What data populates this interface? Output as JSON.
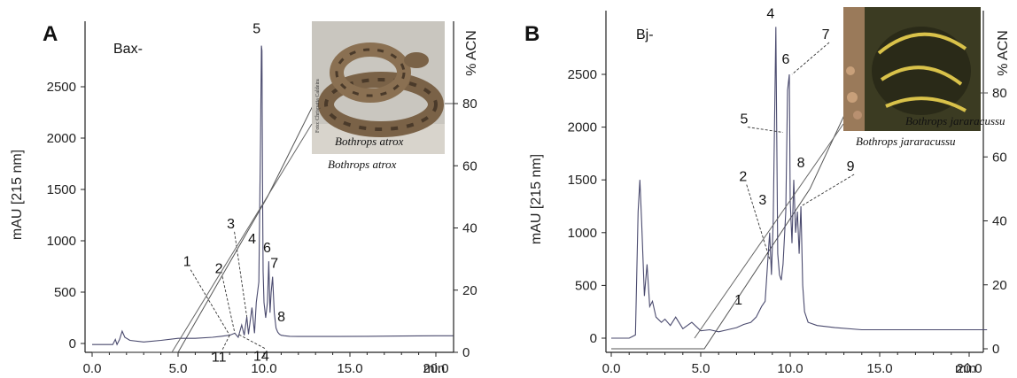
{
  "chart_data": [
    {
      "type": "line",
      "panel_label": "A",
      "species_label": "Bax-",
      "ylabel": "mAU [215 nm]",
      "y2label": "% ACN",
      "x_unit": "min",
      "xlim": [
        0,
        21
      ],
      "ylim": [
        -100,
        3000
      ],
      "y2lim": [
        0,
        100
      ],
      "x_ticks": [
        "0.0",
        "5.0",
        "10.0",
        "15.0",
        "20.0"
      ],
      "y_ticks": [
        "0",
        "500",
        "1000",
        "1500",
        "2000",
        "2500"
      ],
      "y2_ticks": [
        "0",
        "20",
        "40",
        "60",
        "80"
      ],
      "series": [
        {
          "x": [
            0.0,
            0.3,
            0.6,
            1.2,
            1.35,
            1.45,
            1.6,
            1.75,
            1.9,
            2.2,
            3,
            4,
            5,
            6,
            7,
            7.5,
            8,
            8.3,
            8.5,
            8.7,
            8.85,
            9.0,
            9.1,
            9.3,
            9.45,
            9.55,
            9.7,
            9.8,
            9.85,
            9.88,
            9.91,
            9.95,
            10.0,
            10.1,
            10.2,
            10.28,
            10.35,
            10.42,
            10.5,
            10.6,
            10.7,
            10.8,
            10.9,
            11.0,
            11.2,
            11.5,
            12,
            14,
            16,
            18,
            20,
            21
          ],
          "y": [
            -10,
            -10,
            -10,
            -10,
            40,
            -10,
            40,
            120,
            60,
            30,
            15,
            30,
            50,
            50,
            60,
            70,
            80,
            100,
            60,
            180,
            80,
            260,
            90,
            350,
            100,
            400,
            600,
            2000,
            2900,
            2850,
            1600,
            700,
            400,
            250,
            400,
            800,
            300,
            500,
            650,
            300,
            150,
            110,
            90,
            80,
            75,
            70,
            68,
            68,
            70,
            72,
            75,
            75
          ]
        },
        {
          "name": "% ACN",
          "x": [
            0,
            5,
            10.2,
            12.9,
            21
          ],
          "y2": [
            0,
            0,
            50,
            80,
            80
          ]
        }
      ],
      "peak_labels": [
        {
          "label": "1",
          "x": 8.0,
          "y": 80
        },
        {
          "label": "2",
          "x": 8.3,
          "y": 100
        },
        {
          "label": "3",
          "x": 9.0,
          "y": 260
        },
        {
          "label": "4",
          "x": 9.1,
          "y": 300
        },
        {
          "label": "5",
          "x": 9.88,
          "y": 2900
        },
        {
          "label": "6",
          "x": 10.28,
          "y": 800
        },
        {
          "label": "7",
          "x": 10.5,
          "y": 650
        },
        {
          "label": "8",
          "x": 10.8,
          "y": 110
        },
        {
          "label": "11",
          "x": 8.0,
          "y": 80
        },
        {
          "label": "14",
          "x": 8.5,
          "y": 90
        }
      ],
      "photo_caption": "Bothrops atrox",
      "photo_credit": "Foto: Chrispatia Caldeira",
      "photo_inner_caption": "Bothrops atrox"
    },
    {
      "type": "line",
      "panel_label": "B",
      "species_label": "Bj-",
      "ylabel": "mAU [215 nm]",
      "y2label": "% ACN",
      "x_unit": "min",
      "xlim": [
        0,
        21
      ],
      "ylim": [
        -100,
        3000
      ],
      "y2lim": [
        0,
        100
      ],
      "x_ticks": [
        "0.0",
        "5.0",
        "10.0",
        "15.0",
        "20.0"
      ],
      "y_ticks": [
        "0",
        "500",
        "1000",
        "1500",
        "2000",
        "2500"
      ],
      "y2_ticks": [
        "0",
        "20",
        "40",
        "60",
        "80"
      ],
      "series": [
        {
          "x": [
            0.0,
            0.5,
            1.0,
            1.35,
            1.5,
            1.6,
            1.7,
            1.85,
            2.0,
            2.15,
            2.3,
            2.5,
            2.8,
            3.0,
            3.3,
            3.6,
            4.0,
            4.5,
            5.0,
            5.5,
            6.0,
            6.5,
            7,
            7.4,
            7.8,
            8.1,
            8.4,
            8.6,
            8.75,
            8.85,
            8.95,
            9.05,
            9.2,
            9.3,
            9.4,
            9.5,
            9.6,
            9.75,
            9.85,
            9.95,
            10.0,
            10.1,
            10.2,
            10.3,
            10.4,
            10.5,
            10.6,
            10.7,
            10.8,
            11.0,
            11.5,
            12.5,
            14,
            16,
            18,
            20,
            21
          ],
          "y": [
            0,
            0,
            0,
            30,
            1200,
            1500,
            1100,
            400,
            700,
            300,
            350,
            200,
            150,
            180,
            120,
            200,
            90,
            150,
            70,
            80,
            60,
            80,
            100,
            130,
            150,
            200,
            300,
            350,
            750,
            1000,
            600,
            1100,
            2950,
            800,
            600,
            550,
            700,
            1200,
            2350,
            2500,
            1300,
            900,
            1500,
            1000,
            1200,
            800,
            1250,
            500,
            250,
            150,
            120,
            100,
            80,
            80,
            80,
            80,
            80
          ]
        },
        {
          "name": "% ACN",
          "x": [
            0,
            5.2,
            11.1,
            13.6,
            21
          ],
          "y2": [
            0,
            0,
            50,
            80,
            80
          ]
        }
      ],
      "peak_labels": [
        {
          "label": "1",
          "x": 8.1,
          "y": 200
        },
        {
          "label": "2",
          "x": 8.85,
          "y": 750
        },
        {
          "label": "3",
          "x": 9.05,
          "y": 1100
        },
        {
          "label": "4",
          "x": 9.2,
          "y": 2950
        },
        {
          "label": "5",
          "x": 9.6,
          "y": 1950
        },
        {
          "label": "6",
          "x": 9.95,
          "y": 2500
        },
        {
          "label": "7",
          "x": 10.1,
          "y": 2500
        },
        {
          "label": "8",
          "x": 10.2,
          "y": 1500
        },
        {
          "label": "9",
          "x": 10.6,
          "y": 1250
        }
      ],
      "photo_caption": "Bothrops jararacussu",
      "photo_inner_caption": "Bothrops jararacussu"
    }
  ],
  "colors": {
    "trace": "#4a4a6e",
    "gradient": "#555555",
    "axis": "#222222",
    "photo_atrox_bg": "#c9c6bf",
    "photo_jara_bg": "#3b3b22"
  }
}
